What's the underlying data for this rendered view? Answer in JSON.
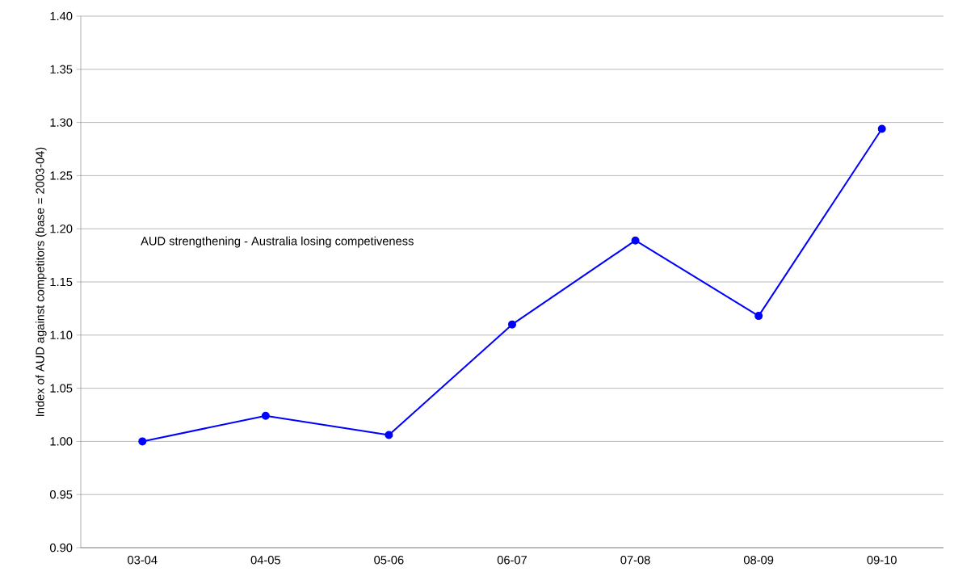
{
  "chart_data": {
    "type": "line",
    "ylabel": "Index of AUD against competitors (base = 2003-04)",
    "categories": [
      "03-04",
      "04-05",
      "05-06",
      "06-07",
      "07-08",
      "08-09",
      "09-10"
    ],
    "series": [
      {
        "color": "#0000ff",
        "values": [
          1.0,
          1.024,
          1.006,
          1.11,
          1.189,
          1.118,
          1.294
        ]
      }
    ],
    "ylim": [
      0.9,
      1.4
    ],
    "yticks": [
      {
        "value": 0.9,
        "label": "0.90"
      },
      {
        "value": 0.95,
        "label": "0.95"
      },
      {
        "value": 1.0,
        "label": "1.00"
      },
      {
        "value": 1.05,
        "label": "1.05"
      },
      {
        "value": 1.1,
        "label": "1.10"
      },
      {
        "value": 1.15,
        "label": "1.15"
      },
      {
        "value": 1.2,
        "label": "1.20"
      },
      {
        "value": 1.25,
        "label": "1.25"
      },
      {
        "value": 1.3,
        "label": "1.30"
      },
      {
        "value": 1.35,
        "label": "1.35"
      },
      {
        "value": 1.4,
        "label": "1.40"
      }
    ],
    "grid": "y",
    "marker": "circle",
    "line_style": "solid",
    "annotations": [
      "AUD strengthening - Australia losing competiveness"
    ]
  }
}
